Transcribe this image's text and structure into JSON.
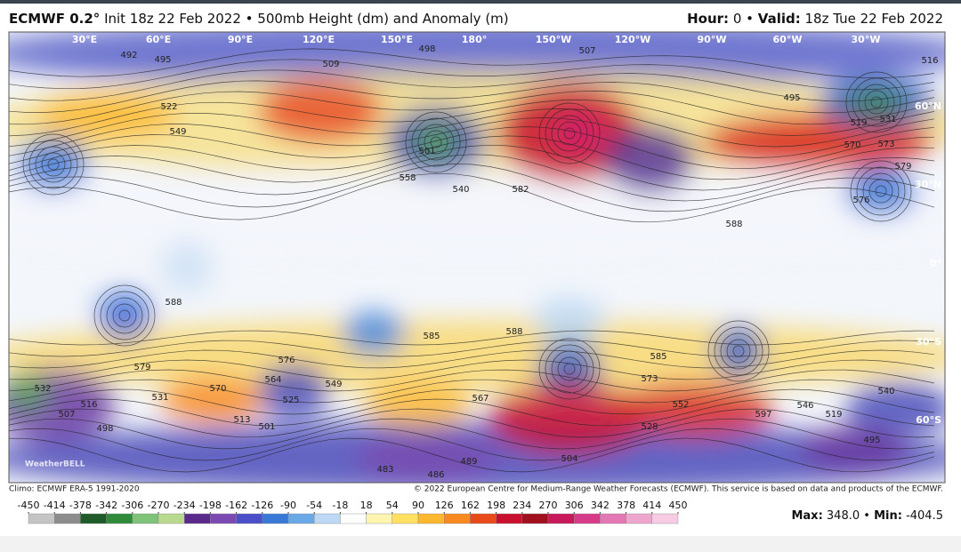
{
  "header": {
    "model": "ECMWF 0.2°",
    "title": "Init 18z 22 Feb 2022 • 500mb Height (dm) and Anomaly (m)",
    "hour_label": "Hour:",
    "hour": "0",
    "separator": "•",
    "valid_label": "Valid:",
    "valid": "18z Tue 22 Feb 2022"
  },
  "map": {
    "longitude_labels": [
      "30°E",
      "60°E",
      "90°E",
      "120°E",
      "150°E",
      "180°",
      "150°W",
      "120°W",
      "90°W",
      "60°W",
      "30°W"
    ],
    "latitude_labels": [
      "60°N",
      "30°N",
      "0°",
      "30°S",
      "60°S"
    ],
    "contour_labels": [
      "492",
      "495",
      "498",
      "509",
      "507",
      "516",
      "519",
      "495",
      "531",
      "570",
      "573",
      "579",
      "576",
      "588",
      "582",
      "540",
      "558",
      "501",
      "549",
      "522",
      "588",
      "585",
      "576",
      "579",
      "570",
      "564",
      "549",
      "525",
      "513",
      "501",
      "532",
      "507",
      "516",
      "498",
      "531",
      "567",
      "588",
      "585",
      "573",
      "552",
      "546",
      "519",
      "495",
      "483",
      "486",
      "489",
      "504",
      "528",
      "540",
      "597"
    ],
    "watermark": "WeatherBELL"
  },
  "footer": {
    "climo": "Climo: ECMWF ERA-5 1991-2020",
    "copyright": "© 2022 European Centre for Medium-Range Weather Forecasts (ECMWF). This service is based on data and products of the ECMWF.",
    "max_label": "Max:",
    "max": "348.0",
    "min_label": "Min:",
    "min": "-404.5"
  },
  "colorbar": {
    "ticks": [
      -450,
      -414,
      -378,
      -342,
      -306,
      -270,
      -234,
      -198,
      -162,
      -126,
      -90,
      -54,
      -18,
      18,
      54,
      90,
      126,
      162,
      198,
      234,
      270,
      306,
      342,
      378,
      414,
      450
    ],
    "colors": [
      "#c4c4c4",
      "#8c8c8c",
      "#1f5a2a",
      "#2f8a3c",
      "#7fc27a",
      "#b9d98e",
      "#5a2a8a",
      "#7a4ab0",
      "#4a4ec8",
      "#3a78d8",
      "#6aa8e8",
      "#bcd8f4",
      "#ffffff",
      "#fff5b0",
      "#ffe060",
      "#fdb830",
      "#f88a20",
      "#e84a1a",
      "#c8102e",
      "#a0101e",
      "#c81a5a",
      "#d83a8a",
      "#e478b4",
      "#eea6cc",
      "#f6cce2"
    ]
  }
}
